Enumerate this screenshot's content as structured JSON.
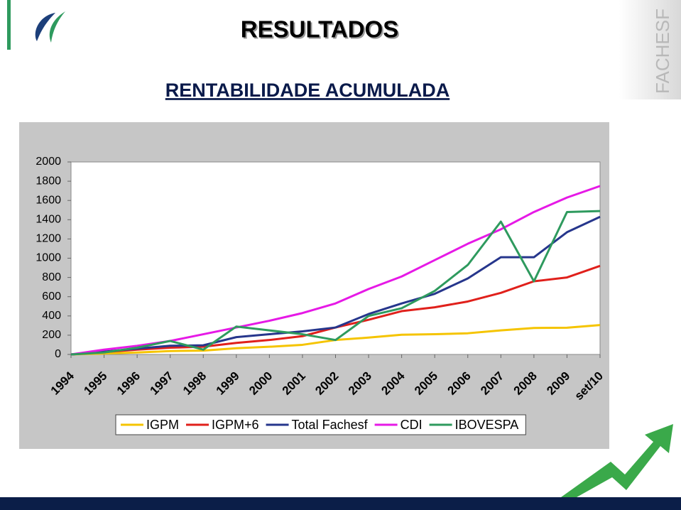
{
  "slide": {
    "title": "RESULTADOS",
    "subtitle": "RENTABILIDADE ACUMULADA",
    "brand": "FACHESF"
  },
  "chart_data": {
    "type": "line",
    "categories": [
      "1994",
      "1995",
      "1996",
      "1997",
      "1998",
      "1999",
      "2000",
      "2001",
      "2002",
      "2003",
      "2004",
      "2005",
      "2006",
      "2007",
      "2008",
      "2009",
      "set/10"
    ],
    "series": [
      {
        "name": "IGPM",
        "color": "#f5c400",
        "values": [
          0,
          10,
          20,
          35,
          40,
          65,
          80,
          100,
          150,
          175,
          205,
          210,
          220,
          250,
          275,
          278,
          305
        ]
      },
      {
        "name": "IGPM+6",
        "color": "#e0201b",
        "values": [
          0,
          25,
          50,
          70,
          80,
          120,
          150,
          190,
          280,
          360,
          450,
          490,
          550,
          640,
          760,
          800,
          920
        ]
      },
      {
        "name": "Total Fachesf",
        "color": "#26368c",
        "values": [
          0,
          30,
          60,
          90,
          95,
          180,
          210,
          240,
          280,
          420,
          530,
          630,
          790,
          1010,
          1010,
          1270,
          1430
        ]
      },
      {
        "name": "CDI",
        "color": "#e619e6",
        "values": [
          0,
          50,
          90,
          140,
          210,
          280,
          350,
          430,
          530,
          680,
          810,
          980,
          1150,
          1300,
          1480,
          1630,
          1750
        ]
      },
      {
        "name": "IBOVESPA",
        "color": "#2e9a5e",
        "values": [
          0,
          20,
          70,
          140,
          50,
          290,
          250,
          210,
          150,
          400,
          480,
          660,
          930,
          1380,
          760,
          1480,
          1490
        ]
      }
    ],
    "ylim": [
      0,
      2000
    ],
    "yticks": [
      0,
      200,
      400,
      600,
      800,
      1000,
      1200,
      1400,
      1600,
      1800,
      2000
    ],
    "grid": false,
    "legend": "bottom"
  }
}
